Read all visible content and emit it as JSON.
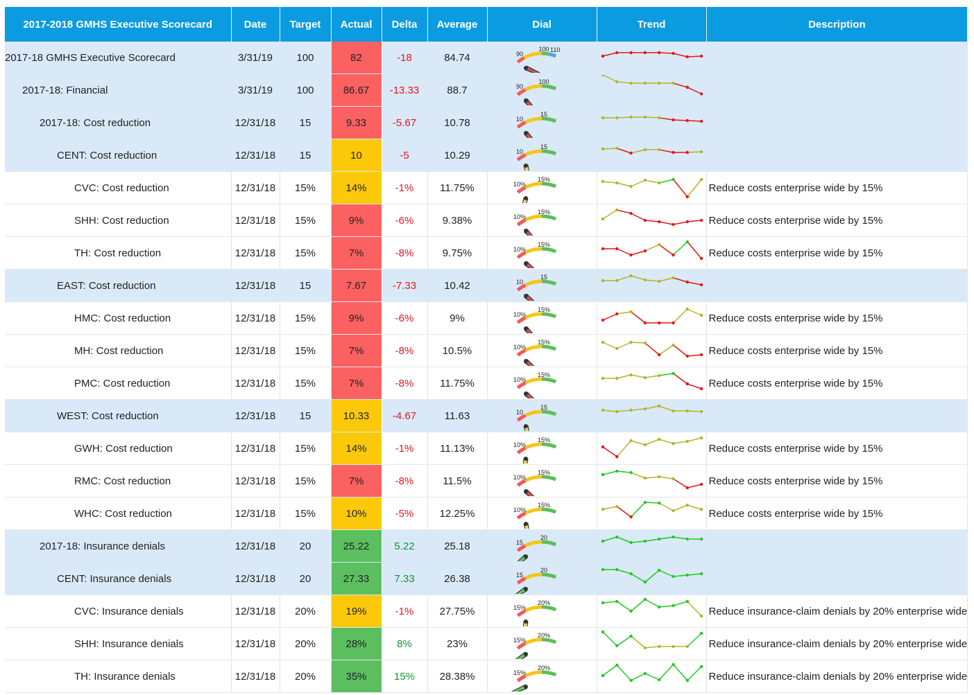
{
  "headers": [
    "2017-2018 GMHS Executive Scorecard",
    "Date",
    "Target",
    "Actual",
    "Delta",
    "Average",
    "Dial",
    "Trend",
    "Description"
  ],
  "colors": {
    "header": "#0b9be0",
    "summary_row": "#d9e9f7",
    "status_red": "#fb6161",
    "status_yellow": "#fcc90a",
    "status_green": "#5bbf5f",
    "dial_red": "#f15a5a",
    "dial_yellow": "#f5c518",
    "dial_green": "#5dbd5b",
    "dial_blue": "#4aa3e8",
    "trend_red": "#e51515",
    "trend_olive": "#b3b32a",
    "trend_green": "#1fc91f",
    "delta_negative": "#e8141e",
    "delta_positive": "#11962c"
  },
  "rows": [
    {
      "name": "2017-18 GMHS Executive Scorecard",
      "level": 0,
      "summary": true,
      "date": "3/31/19",
      "target": "100",
      "actual": "82",
      "status": "red",
      "delta": "-18",
      "average": "84.74",
      "dial": {
        "labels": [
          "90",
          "100",
          "110"
        ],
        "value_fraction": 0.03,
        "blue_band": true
      },
      "trend": {
        "values": [
          4.0,
          5.0,
          5.0,
          5.0,
          5.0,
          4.8,
          3.8,
          4.0
        ],
        "colors": [
          "r",
          "r",
          "r",
          "r",
          "r",
          "r",
          "r",
          "r"
        ]
      },
      "description": ""
    },
    {
      "name": "2017-18: Financial",
      "level": 1,
      "summary": true,
      "date": "3/31/19",
      "target": "100",
      "actual": "86.67",
      "status": "red",
      "delta": "-13.33",
      "average": "88.7",
      "dial": {
        "labels": [
          "90",
          "100"
        ],
        "value_fraction": 0.2
      },
      "trend": {
        "values": [
          8.0,
          6.0,
          5.6,
          5.6,
          5.6,
          5.6,
          4.4,
          2.5
        ],
        "colors": [
          "o",
          "o",
          "o",
          "o",
          "o",
          "o",
          "r",
          "r"
        ]
      },
      "description": ""
    },
    {
      "name": "2017-18: Cost reduction",
      "level": 2,
      "summary": true,
      "date": "12/31/18",
      "target": "15",
      "actual": "9.33",
      "status": "red",
      "delta": "-5.67",
      "average": "10.78",
      "dial": {
        "labels": [
          "10",
          "15"
        ],
        "value_fraction": 0.2
      },
      "trend": {
        "values": [
          5.0,
          5.0,
          5.2,
          5.2,
          5.0,
          4.4,
          4.2,
          4.0
        ],
        "colors": [
          "o",
          "o",
          "o",
          "o",
          "o",
          "r",
          "r",
          "r"
        ]
      },
      "description": ""
    },
    {
      "name": "CENT: Cost reduction",
      "level": 3,
      "summary": true,
      "date": "12/31/18",
      "target": "15",
      "actual": "10",
      "status": "yellow",
      "delta": "-5",
      "average": "10.29",
      "dial": {
        "labels": [
          "10",
          "15"
        ],
        "value_fraction": 0.4
      },
      "trend": {
        "values": [
          5.4,
          5.6,
          4.2,
          5.2,
          5.2,
          4.4,
          4.4,
          4.6
        ],
        "colors": [
          "o",
          "o",
          "r",
          "o",
          "o",
          "r",
          "r",
          "o"
        ]
      },
      "description": ""
    },
    {
      "name": "CVC: Cost reduction",
      "level": 4,
      "summary": false,
      "date": "12/31/18",
      "target": "15%",
      "actual": "14%",
      "status": "yellow",
      "delta": "-1%",
      "average": "11.75%",
      "dial": {
        "labels": [
          "10%",
          "15%"
        ],
        "value_fraction": 0.6
      },
      "trend": {
        "values": [
          5.4,
          5.0,
          4.0,
          5.8,
          5.0,
          6.0,
          1.0,
          6.0
        ],
        "colors": [
          "o",
          "o",
          "o",
          "o",
          "o",
          "g",
          "r",
          "o"
        ]
      },
      "description": "Reduce costs enterprise wide by 15%"
    },
    {
      "name": "SHH: Cost reduction",
      "level": 4,
      "summary": false,
      "date": "12/31/18",
      "target": "15%",
      "actual": "9%",
      "status": "red",
      "delta": "-6%",
      "average": "9.38%",
      "dial": {
        "labels": [
          "10%",
          "15%"
        ],
        "value_fraction": 0.2
      },
      "trend": {
        "values": [
          4.0,
          6.6,
          5.6,
          3.6,
          3.2,
          2.4,
          3.2,
          3.6
        ],
        "colors": [
          "o",
          "o",
          "r",
          "r",
          "r",
          "r",
          "r",
          "r"
        ]
      },
      "description": "Reduce costs enterprise wide by 15%"
    },
    {
      "name": "TH: Cost reduction",
      "level": 4,
      "summary": false,
      "date": "12/31/18",
      "target": "15%",
      "actual": "7%",
      "status": "red",
      "delta": "-8%",
      "average": "9.75%",
      "dial": {
        "labels": [
          "10%",
          "15%"
        ],
        "value_fraction": 0.15
      },
      "trend": {
        "values": [
          4.8,
          4.8,
          3.0,
          4.2,
          6.0,
          3.0,
          6.8,
          2.0
        ],
        "colors": [
          "r",
          "r",
          "r",
          "r",
          "o",
          "r",
          "g",
          "r"
        ]
      },
      "description": "Reduce costs enterprise wide by 15%"
    },
    {
      "name": "EAST: Cost reduction",
      "level": 3,
      "summary": true,
      "date": "12/31/18",
      "target": "15",
      "actual": "7.67",
      "status": "red",
      "delta": "-7.33",
      "average": "10.42",
      "dial": {
        "labels": [
          "10",
          "15"
        ],
        "value_fraction": 0.15
      },
      "trend": {
        "values": [
          5.0,
          5.0,
          6.4,
          5.2,
          4.8,
          5.8,
          4.6,
          3.8
        ],
        "colors": [
          "o",
          "o",
          "o",
          "o",
          "o",
          "o",
          "r",
          "r"
        ]
      },
      "description": ""
    },
    {
      "name": "HMC: Cost reduction",
      "level": 4,
      "summary": false,
      "date": "12/31/18",
      "target": "15%",
      "actual": "9%",
      "status": "red",
      "delta": "-6%",
      "average": "9%",
      "dial": {
        "labels": [
          "10%",
          "15%"
        ],
        "value_fraction": 0.2
      },
      "trend": {
        "values": [
          3.0,
          4.8,
          5.4,
          2.2,
          2.2,
          2.2,
          6.2,
          4.4
        ],
        "colors": [
          "r",
          "r",
          "o",
          "r",
          "r",
          "r",
          "o",
          "o"
        ]
      },
      "description": "Reduce costs enterprise wide by 15%"
    },
    {
      "name": "MH: Cost reduction",
      "level": 4,
      "summary": false,
      "date": "12/31/18",
      "target": "15%",
      "actual": "7%",
      "status": "red",
      "delta": "-8%",
      "average": "10.5%",
      "dial": {
        "labels": [
          "10%",
          "15%"
        ],
        "value_fraction": 0.15
      },
      "trend": {
        "values": [
          6.0,
          4.2,
          6.0,
          5.8,
          2.4,
          5.2,
          2.0,
          2.4
        ],
        "colors": [
          "o",
          "o",
          "o",
          "o",
          "r",
          "o",
          "r",
          "r"
        ]
      },
      "description": "Reduce costs enterprise wide by 15%"
    },
    {
      "name": "PMC: Cost reduction",
      "level": 4,
      "summary": false,
      "date": "12/31/18",
      "target": "15%",
      "actual": "7%",
      "status": "red",
      "delta": "-8%",
      "average": "11.75%",
      "dial": {
        "labels": [
          "10%",
          "15%"
        ],
        "value_fraction": 0.15
      },
      "trend": {
        "values": [
          5.0,
          5.0,
          6.0,
          5.2,
          5.8,
          6.4,
          3.4,
          2.0
        ],
        "colors": [
          "o",
          "o",
          "o",
          "o",
          "o",
          "g",
          "r",
          "r"
        ]
      },
      "description": "Reduce costs enterprise wide by 15%"
    },
    {
      "name": "WEST: Cost reduction",
      "level": 3,
      "summary": true,
      "date": "12/31/18",
      "target": "15",
      "actual": "10.33",
      "status": "yellow",
      "delta": "-4.67",
      "average": "11.63",
      "dial": {
        "labels": [
          "10",
          "15"
        ],
        "value_fraction": 0.4
      },
      "trend": {
        "values": [
          5.2,
          4.8,
          5.2,
          5.6,
          6.4,
          5.0,
          5.0,
          4.8
        ],
        "colors": [
          "o",
          "o",
          "o",
          "o",
          "o",
          "o",
          "o",
          "o"
        ]
      },
      "description": ""
    },
    {
      "name": "GWH: Cost reduction",
      "level": 4,
      "summary": false,
      "date": "12/31/18",
      "target": "15%",
      "actual": "14%",
      "status": "yellow",
      "delta": "-1%",
      "average": "11.13%",
      "dial": {
        "labels": [
          "10%",
          "15%"
        ],
        "value_fraction": 0.55
      },
      "trend": {
        "values": [
          4.0,
          1.2,
          5.8,
          4.6,
          6.2,
          5.0,
          5.6,
          6.6
        ],
        "colors": [
          "r",
          "r",
          "o",
          "o",
          "o",
          "o",
          "o",
          "o"
        ]
      },
      "description": "Reduce costs enterprise wide by 15%"
    },
    {
      "name": "RMC: Cost reduction",
      "level": 4,
      "summary": false,
      "date": "12/31/18",
      "target": "15%",
      "actual": "7%",
      "status": "red",
      "delta": "-8%",
      "average": "11.5%",
      "dial": {
        "labels": [
          "10%",
          "15%"
        ],
        "value_fraction": 0.15
      },
      "trend": {
        "values": [
          5.4,
          6.4,
          6.0,
          4.4,
          4.8,
          4.2,
          1.6,
          2.6
        ],
        "colors": [
          "g",
          "g",
          "g",
          "o",
          "o",
          "o",
          "r",
          "r"
        ]
      },
      "description": "Reduce costs enterprise wide by 15%"
    },
    {
      "name": "WHC: Cost reduction",
      "level": 4,
      "summary": false,
      "date": "12/31/18",
      "target": "15%",
      "actual": "10%",
      "status": "yellow",
      "delta": "-5%",
      "average": "12.25%",
      "dial": {
        "labels": [
          "10%",
          "15%"
        ],
        "value_fraction": 0.4
      },
      "trend": {
        "values": [
          4.8,
          5.6,
          2.6,
          6.8,
          6.6,
          4.4,
          6.0,
          4.8
        ],
        "colors": [
          "o",
          "o",
          "r",
          "g",
          "g",
          "o",
          "o",
          "o"
        ]
      },
      "description": "Reduce costs enterprise wide by 15%"
    },
    {
      "name": "2017-18: Insurance denials",
      "level": 2,
      "summary": true,
      "date": "12/31/18",
      "target": "20",
      "actual": "25.22",
      "status": "green",
      "delta": "5.22",
      "average": "25.18",
      "dial": {
        "labels": [
          "15",
          "20"
        ],
        "value_fraction": 0.85
      },
      "trend": {
        "values": [
          5.0,
          6.2,
          4.6,
          5.0,
          5.6,
          6.2,
          5.6,
          5.6
        ],
        "colors": [
          "g",
          "g",
          "g",
          "g",
          "g",
          "g",
          "g",
          "g"
        ]
      },
      "description": ""
    },
    {
      "name": "CENT: Insurance denials",
      "level": 3,
      "summary": true,
      "date": "12/31/18",
      "target": "20",
      "actual": "27.33",
      "status": "green",
      "delta": "7.33",
      "average": "26.38",
      "dial": {
        "labels": [
          "15",
          "20"
        ],
        "value_fraction": 0.9
      },
      "trend": {
        "values": [
          6.2,
          6.2,
          5.0,
          2.6,
          6.0,
          4.2,
          4.6,
          5.0
        ],
        "colors": [
          "g",
          "g",
          "g",
          "g",
          "g",
          "g",
          "g",
          "g"
        ]
      },
      "description": ""
    },
    {
      "name": "CVC: Insurance denials",
      "level": 4,
      "summary": false,
      "date": "12/31/18",
      "target": "20%",
      "actual": "19%",
      "status": "yellow",
      "delta": "-1%",
      "average": "27.75%",
      "dial": {
        "labels": [
          "15%",
          "20%"
        ],
        "value_fraction": 0.55
      },
      "trend": {
        "values": [
          6.0,
          6.4,
          3.6,
          7.0,
          4.8,
          5.2,
          6.4,
          2.2
        ],
        "colors": [
          "g",
          "g",
          "g",
          "g",
          "g",
          "g",
          "g",
          "o"
        ]
      },
      "description": "Reduce insurance-claim denials by 20% enterprise wide"
    },
    {
      "name": "SHH: Insurance denials",
      "level": 4,
      "summary": false,
      "date": "12/31/18",
      "target": "20%",
      "actual": "28%",
      "status": "green",
      "delta": "8%",
      "average": "23%",
      "dial": {
        "labels": [
          "15%",
          "20%"
        ],
        "value_fraction": 0.9
      },
      "trend": {
        "values": [
          7.0,
          3.0,
          5.8,
          2.4,
          2.8,
          2.8,
          2.8,
          6.6
        ],
        "colors": [
          "g",
          "g",
          "g",
          "o",
          "o",
          "o",
          "o",
          "g"
        ]
      },
      "description": "Reduce insurance-claim denials by 20% enterprise wide"
    },
    {
      "name": "TH: Insurance denials",
      "level": 4,
      "summary": false,
      "date": "12/31/18",
      "target": "20%",
      "actual": "35%",
      "status": "green",
      "delta": "15%",
      "average": "28.38%",
      "dial": {
        "labels": [
          "15%",
          "20%"
        ],
        "value_fraction": 0.97
      },
      "trend": {
        "values": [
          3.8,
          6.8,
          2.4,
          4.4,
          2.6,
          7.0,
          2.4,
          6.4
        ],
        "colors": [
          "g",
          "g",
          "g",
          "g",
          "g",
          "g",
          "g",
          "g"
        ]
      },
      "description": "Reduce insurance-claim denials by 20% enterprise wide"
    }
  ]
}
